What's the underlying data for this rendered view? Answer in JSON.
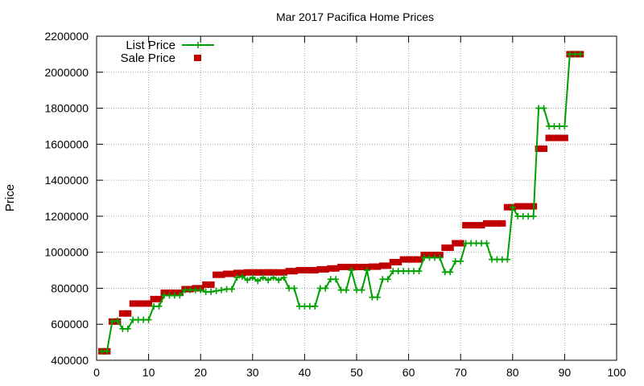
{
  "chart_data": {
    "type": "line",
    "title": "Mar 2017 Pacifica Home Prices",
    "xlabel": "",
    "ylabel": "Price",
    "xlim": [
      0,
      100
    ],
    "ylim": [
      400000,
      2200000
    ],
    "x_ticks": [
      0,
      10,
      20,
      30,
      40,
      50,
      60,
      70,
      80,
      90,
      100
    ],
    "x_tick_labels": [
      "0",
      "10",
      "20",
      "30",
      "40",
      "50",
      "60",
      "70",
      "80",
      "90",
      "100"
    ],
    "y_ticks": [
      400000,
      600000,
      800000,
      1000000,
      1200000,
      1400000,
      1600000,
      1800000,
      2000000,
      2200000
    ],
    "y_tick_labels": [
      "400000",
      "600000",
      "800000",
      "1000000",
      "1200000",
      "1400000",
      "1600000",
      "1800000",
      "2000000",
      "2200000"
    ],
    "grid": true,
    "legend_position": "top-left",
    "colors": {
      "list": "#00a000",
      "sale": "#c00000"
    },
    "series": [
      {
        "name": "List Price",
        "style": "linespoints",
        "x": [
          1,
          2,
          3,
          4,
          5,
          6,
          7,
          8,
          9,
          10,
          11,
          12,
          13,
          14,
          15,
          16,
          17,
          18,
          19,
          20,
          21,
          22,
          23,
          24,
          25,
          26,
          27,
          28,
          29,
          30,
          31,
          32,
          33,
          34,
          35,
          36,
          37,
          38,
          39,
          40,
          41,
          42,
          43,
          44,
          45,
          46,
          47,
          48,
          49,
          50,
          51,
          52,
          53,
          54,
          55,
          56,
          57,
          58,
          59,
          60,
          61,
          62,
          63,
          64,
          65,
          66,
          67,
          68,
          69,
          70,
          71,
          72,
          73,
          74,
          75,
          76,
          77,
          78,
          79,
          80,
          81,
          82,
          83,
          84,
          85,
          86,
          87,
          88,
          89,
          90,
          91,
          92,
          93
        ],
        "values": [
          450000,
          450000,
          615000,
          620000,
          575000,
          575000,
          625000,
          625000,
          625000,
          625000,
          700000,
          700000,
          760000,
          760000,
          760000,
          760000,
          790000,
          790000,
          790000,
          790000,
          780000,
          780000,
          785000,
          790000,
          795000,
          795000,
          860000,
          865000,
          845000,
          860000,
          840000,
          860000,
          845000,
          860000,
          845000,
          860000,
          800000,
          800000,
          700000,
          700000,
          700000,
          700000,
          800000,
          800000,
          850000,
          850000,
          790000,
          790000,
          900000,
          790000,
          790000,
          900000,
          750000,
          750000,
          850000,
          850000,
          895000,
          895000,
          895000,
          895000,
          895000,
          895000,
          970000,
          970000,
          970000,
          970000,
          890000,
          890000,
          950000,
          950000,
          1050000,
          1050000,
          1050000,
          1050000,
          1050000,
          960000,
          960000,
          960000,
          960000,
          1250000,
          1200000,
          1200000,
          1200000,
          1200000,
          1800000,
          1800000,
          1700000,
          1700000,
          1700000,
          1700000,
          2100000,
          2100000,
          2100000
        ]
      },
      {
        "name": "Sale Price",
        "style": "steps",
        "x": [
          1,
          2,
          3,
          4,
          5,
          6,
          7,
          8,
          9,
          10,
          11,
          12,
          13,
          14,
          15,
          16,
          17,
          18,
          19,
          20,
          21,
          22,
          23,
          24,
          25,
          26,
          27,
          28,
          29,
          30,
          31,
          32,
          33,
          34,
          35,
          36,
          37,
          38,
          39,
          40,
          41,
          42,
          43,
          44,
          45,
          46,
          47,
          48,
          49,
          50,
          51,
          52,
          53,
          54,
          55,
          56,
          57,
          58,
          59,
          60,
          61,
          62,
          63,
          64,
          65,
          66,
          67,
          68,
          69,
          70,
          71,
          72,
          73,
          74,
          75,
          76,
          77,
          78,
          79,
          80,
          81,
          82,
          83,
          84,
          85,
          86,
          87,
          88,
          89,
          90,
          91,
          92,
          93
        ],
        "values": [
          450000,
          450000,
          615000,
          615000,
          660000,
          660000,
          715000,
          715000,
          715000,
          715000,
          740000,
          740000,
          775000,
          775000,
          775000,
          775000,
          795000,
          795000,
          800000,
          800000,
          820000,
          820000,
          875000,
          875000,
          880000,
          880000,
          885000,
          885000,
          888000,
          888000,
          888000,
          888000,
          888000,
          888000,
          888000,
          888000,
          895000,
          895000,
          900000,
          900000,
          900000,
          900000,
          905000,
          905000,
          910000,
          910000,
          918000,
          918000,
          918000,
          918000,
          918000,
          918000,
          920000,
          920000,
          925000,
          925000,
          945000,
          945000,
          960000,
          960000,
          960000,
          960000,
          985000,
          985000,
          985000,
          985000,
          1025000,
          1025000,
          1050000,
          1050000,
          1150000,
          1150000,
          1150000,
          1150000,
          1160000,
          1160000,
          1160000,
          1160000,
          1250000,
          1250000,
          1255000,
          1255000,
          1255000,
          1255000,
          1575000,
          1575000,
          1635000,
          1635000,
          1635000,
          1635000,
          2100000,
          2100000,
          2100000
        ]
      }
    ]
  }
}
